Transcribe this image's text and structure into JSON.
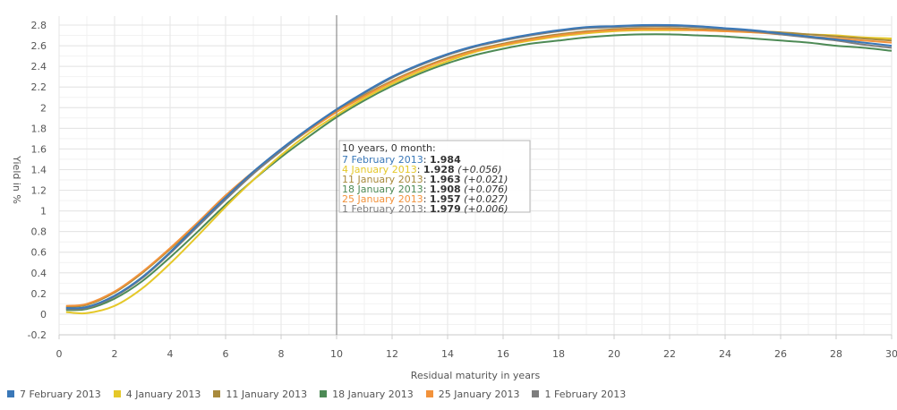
{
  "chart_data": {
    "type": "line",
    "xlabel": "Residual maturity in years",
    "ylabel": "Yield in %",
    "xlim": [
      0,
      30
    ],
    "ylim": [
      -0.2,
      2.8
    ],
    "x_ticks": [
      "0",
      "2",
      "4",
      "6",
      "8",
      "10",
      "12",
      "14",
      "16",
      "18",
      "20",
      "22",
      "24",
      "26",
      "28",
      "30"
    ],
    "y_ticks": [
      "-0.2",
      "0",
      "0.2",
      "0.4",
      "0.6",
      "0.8",
      "1",
      "1.2",
      "1.4",
      "1.6",
      "1.8",
      "2",
      "2.2",
      "2.4",
      "2.6",
      "2.8"
    ],
    "grid": true,
    "legend_position": "bottom-left",
    "crosshair_x": 10,
    "series": [
      {
        "name": "7 February 2013",
        "color": "#3a78b8",
        "x": [
          0.25,
          1,
          2,
          3,
          4,
          5,
          6,
          7,
          8,
          9,
          10,
          11,
          12,
          13,
          14,
          15,
          16,
          17,
          18,
          19,
          20,
          21,
          22,
          23,
          24,
          25,
          26,
          27,
          28,
          29,
          30
        ],
        "values": [
          0.06,
          0.07,
          0.18,
          0.36,
          0.6,
          0.87,
          1.13,
          1.38,
          1.6,
          1.8,
          1.984,
          2.15,
          2.3,
          2.42,
          2.52,
          2.6,
          2.66,
          2.71,
          2.75,
          2.78,
          2.79,
          2.8,
          2.8,
          2.79,
          2.77,
          2.75,
          2.72,
          2.69,
          2.66,
          2.63,
          2.6
        ]
      },
      {
        "name": "4 January 2013",
        "color": "#e5c829",
        "x": [
          0.25,
          1,
          2,
          3,
          4,
          5,
          6,
          7,
          8,
          9,
          10,
          11,
          12,
          13,
          14,
          15,
          16,
          17,
          18,
          19,
          20,
          21,
          22,
          23,
          24,
          25,
          26,
          27,
          28,
          29,
          30
        ],
        "values": [
          0.02,
          0.01,
          0.08,
          0.25,
          0.49,
          0.76,
          1.04,
          1.3,
          1.54,
          1.75,
          1.928,
          2.09,
          2.23,
          2.35,
          2.45,
          2.54,
          2.6,
          2.65,
          2.69,
          2.72,
          2.74,
          2.75,
          2.75,
          2.75,
          2.74,
          2.73,
          2.72,
          2.71,
          2.7,
          2.68,
          2.67
        ]
      },
      {
        "name": "11 January 2013",
        "color": "#a88a3c",
        "x": [
          0.25,
          1,
          2,
          3,
          4,
          5,
          6,
          7,
          8,
          9,
          10,
          11,
          12,
          13,
          14,
          15,
          16,
          17,
          18,
          19,
          20,
          21,
          22,
          23,
          24,
          25,
          26,
          27,
          28,
          29,
          30
        ],
        "values": [
          0.07,
          0.09,
          0.21,
          0.4,
          0.63,
          0.88,
          1.14,
          1.38,
          1.59,
          1.78,
          1.963,
          2.12,
          2.26,
          2.38,
          2.48,
          2.56,
          2.62,
          2.67,
          2.71,
          2.74,
          2.76,
          2.77,
          2.77,
          2.76,
          2.75,
          2.74,
          2.73,
          2.71,
          2.69,
          2.67,
          2.65
        ]
      },
      {
        "name": "18 January 2013",
        "color": "#4d8a55",
        "x": [
          0.25,
          1,
          2,
          3,
          4,
          5,
          6,
          7,
          8,
          9,
          10,
          11,
          12,
          13,
          14,
          15,
          16,
          17,
          18,
          19,
          20,
          21,
          22,
          23,
          24,
          25,
          26,
          27,
          28,
          29,
          30
        ],
        "values": [
          0.04,
          0.05,
          0.15,
          0.32,
          0.55,
          0.8,
          1.06,
          1.3,
          1.52,
          1.72,
          1.908,
          2.07,
          2.21,
          2.33,
          2.43,
          2.51,
          2.57,
          2.62,
          2.65,
          2.68,
          2.7,
          2.71,
          2.71,
          2.7,
          2.69,
          2.67,
          2.65,
          2.63,
          2.6,
          2.58,
          2.55
        ]
      },
      {
        "name": "25 January 2013",
        "color": "#f2923b",
        "x": [
          0.25,
          1,
          2,
          3,
          4,
          5,
          6,
          7,
          8,
          9,
          10,
          11,
          12,
          13,
          14,
          15,
          16,
          17,
          18,
          19,
          20,
          21,
          22,
          23,
          24,
          25,
          26,
          27,
          28,
          29,
          30
        ],
        "values": [
          0.08,
          0.1,
          0.22,
          0.41,
          0.64,
          0.89,
          1.15,
          1.38,
          1.59,
          1.78,
          1.957,
          2.11,
          2.25,
          2.37,
          2.47,
          2.55,
          2.61,
          2.66,
          2.7,
          2.73,
          2.75,
          2.76,
          2.76,
          2.75,
          2.74,
          2.73,
          2.71,
          2.69,
          2.67,
          2.65,
          2.63
        ]
      },
      {
        "name": "1 February 2013",
        "color": "#7d7d7d",
        "x": [
          0.25,
          1,
          2,
          3,
          4,
          5,
          6,
          7,
          8,
          9,
          10,
          11,
          12,
          13,
          14,
          15,
          16,
          17,
          18,
          19,
          20,
          21,
          22,
          23,
          24,
          25,
          26,
          27,
          28,
          29,
          30
        ],
        "values": [
          0.05,
          0.06,
          0.17,
          0.35,
          0.59,
          0.85,
          1.11,
          1.36,
          1.58,
          1.79,
          1.979,
          2.14,
          2.29,
          2.41,
          2.51,
          2.59,
          2.65,
          2.7,
          2.74,
          2.77,
          2.78,
          2.79,
          2.79,
          2.78,
          2.76,
          2.74,
          2.71,
          2.68,
          2.65,
          2.61,
          2.58
        ]
      }
    ],
    "tooltip": {
      "header": "10 years, 0 month:",
      "rows": [
        {
          "label": "7 February 2013",
          "value": "1.984",
          "delta": "",
          "color": "#3a78b8"
        },
        {
          "label": "4 January 2013",
          "value": "1.928",
          "delta": "(+0.056)",
          "color": "#e5c829"
        },
        {
          "label": "11 January 2013",
          "value": "1.963",
          "delta": "(+0.021)",
          "color": "#a88a3c"
        },
        {
          "label": "18 January 2013",
          "value": "1.908",
          "delta": "(+0.076)",
          "color": "#4d8a55"
        },
        {
          "label": "25 January 2013",
          "value": "1.957",
          "delta": "(+0.027)",
          "color": "#f2923b"
        },
        {
          "label": "1 February 2013",
          "value": "1.979",
          "delta": "(+0.006)",
          "color": "#7d7d7d"
        }
      ]
    }
  }
}
